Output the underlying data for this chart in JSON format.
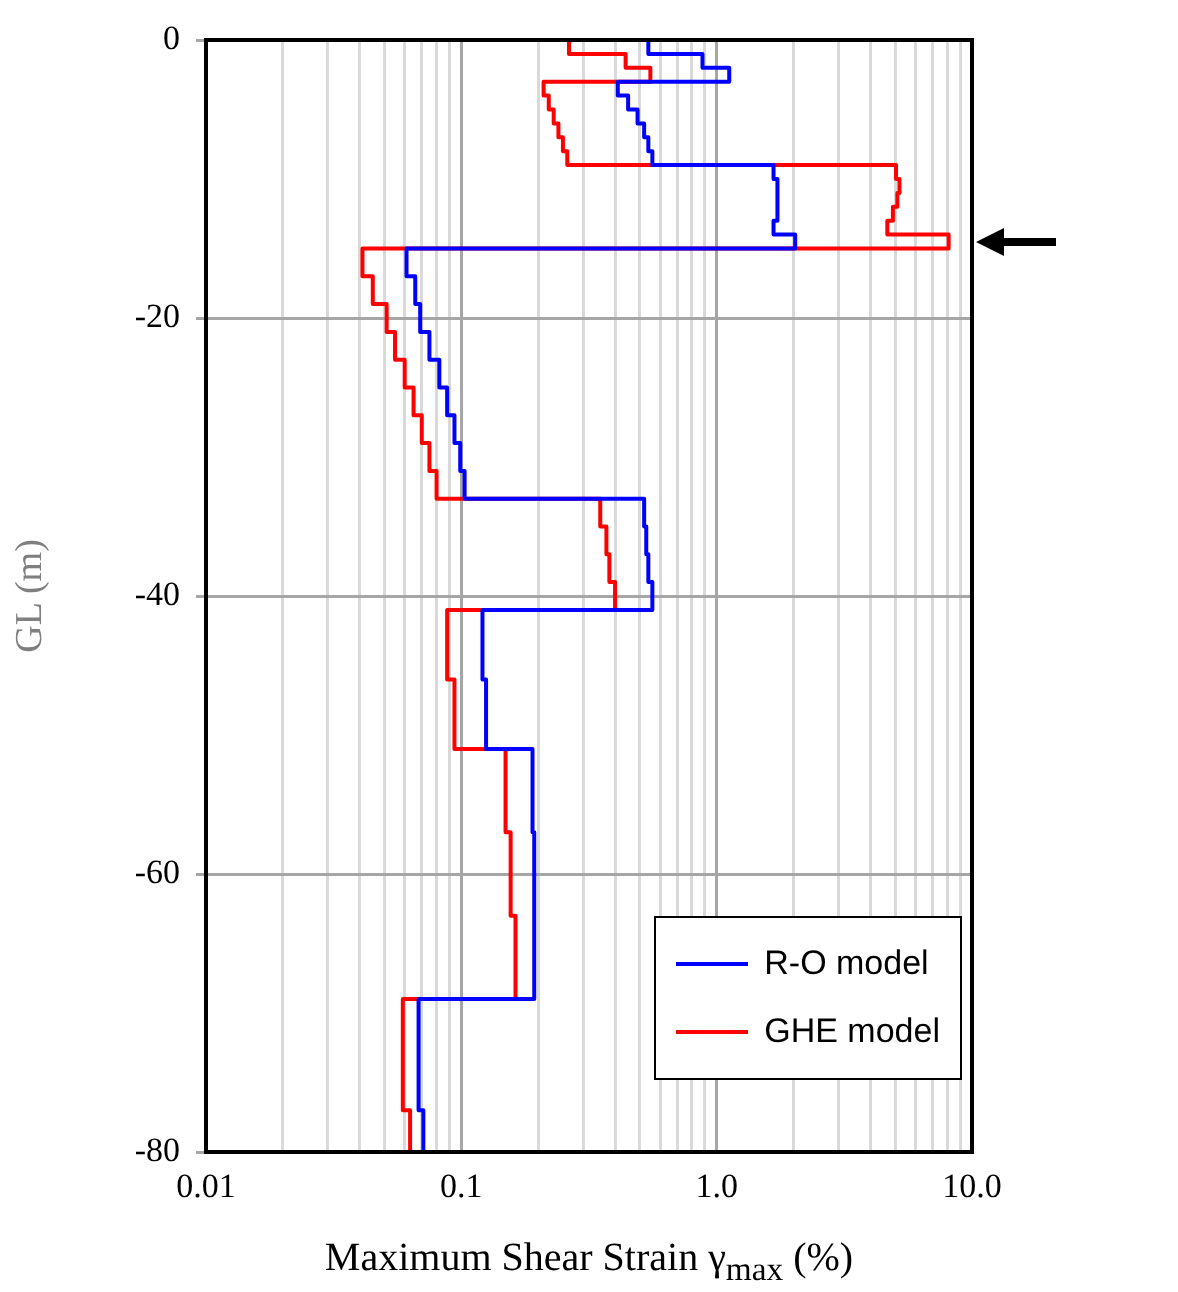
{
  "chart_data": {
    "type": "line",
    "xlabel": "Maximum Shear Strain γ$_{max}$  (%)",
    "ylabel": "GL (m)",
    "log": "x",
    "grid": true,
    "legend": "bottom right",
    "marker": "none",
    "xlim": [
      0.01,
      10
    ],
    "ylim": [
      -80,
      0
    ],
    "xticks": [
      0.01,
      {
        "value": 0.02,
        "label": null
      },
      {
        "value": 0.03,
        "label": null
      },
      {
        "value": 0.04,
        "label": null
      },
      {
        "value": 0.05,
        "label": null
      },
      {
        "value": 0.06,
        "label": null
      },
      {
        "value": 0.07,
        "label": null
      },
      {
        "value": 0.08,
        "label": null
      },
      {
        "value": 0.09,
        "label": null
      },
      0.1,
      {
        "value": 0.2,
        "label": null
      },
      {
        "value": 0.3,
        "label": null
      },
      {
        "value": 0.4,
        "label": null
      },
      {
        "value": 0.5,
        "label": null
      },
      {
        "value": 0.6,
        "label": null
      },
      {
        "value": 0.7,
        "label": null
      },
      {
        "value": 0.8,
        "label": null
      },
      {
        "value": 0.9,
        "label": null
      },
      {
        "value": 1,
        "label": "1.0"
      },
      {
        "value": 2,
        "label": null
      },
      {
        "value": 3,
        "label": null
      },
      {
        "value": 4,
        "label": null
      },
      {
        "value": 5,
        "label": null
      },
      {
        "value": 6,
        "label": null
      },
      {
        "value": 7,
        "label": null
      },
      {
        "value": 8,
        "label": null
      },
      {
        "value": 9,
        "label": null
      },
      {
        "value": 10,
        "label": "10.0"
      }
    ],
    "yticks": [
      0,
      -20,
      -40,
      -60,
      -80
    ],
    "series": [
      {
        "name": "R-O model",
        "color": "#0000ff",
        "x": [
          0.54,
          0.54,
          0.88,
          0.88,
          1.12,
          1.12,
          0.41,
          0.41,
          0.45,
          0.45,
          0.49,
          0.49,
          0.52,
          0.52,
          0.54,
          0.54,
          0.56,
          0.56,
          1.67,
          1.67,
          1.73,
          1.73,
          1.67,
          1.67,
          2.03,
          2.03,
          0.061,
          0.061,
          0.066,
          0.066,
          0.069,
          0.069,
          0.075,
          0.075,
          0.082,
          0.082,
          0.088,
          0.088,
          0.094,
          0.094,
          0.099,
          0.099,
          0.103,
          0.103,
          0.52,
          0.52,
          0.53,
          0.53,
          0.54,
          0.54,
          0.56,
          0.56,
          0.121,
          0.121,
          0.125,
          0.125,
          0.19,
          0.19,
          0.193,
          0.193,
          0.068,
          0.068,
          0.071,
          0.071
        ],
        "values": [
          0,
          -1,
          -1,
          -2,
          -2,
          -3,
          -3,
          -4,
          -4,
          -5,
          -5,
          -6,
          -6,
          -7,
          -7,
          -8,
          -8,
          -9,
          -9,
          -10,
          -10,
          -13,
          -13,
          -14,
          -14,
          -15,
          -15,
          -17,
          -17,
          -19,
          -19,
          -21,
          -21,
          -23,
          -23,
          -25,
          -25,
          -27,
          -27,
          -29,
          -29,
          -31,
          -31,
          -33,
          -33,
          -35,
          -35,
          -37,
          -37,
          -39,
          -39,
          -41,
          -41,
          -46,
          -46,
          -51,
          -51,
          -57,
          -57,
          -69,
          -69,
          -77,
          -77,
          -80
        ]
      },
      {
        "name": "GHE model",
        "color": "#ff0000",
        "x": [
          0.264,
          0.264,
          0.44,
          0.44,
          0.55,
          0.55,
          0.21,
          0.21,
          0.22,
          0.22,
          0.23,
          0.23,
          0.24,
          0.24,
          0.25,
          0.25,
          0.26,
          0.26,
          5.04,
          5.04,
          5.2,
          5.2,
          5.1,
          5.1,
          4.9,
          4.9,
          4.66,
          4.66,
          8.1,
          8.1,
          0.041,
          0.041,
          0.045,
          0.045,
          0.051,
          0.051,
          0.055,
          0.055,
          0.06,
          0.06,
          0.065,
          0.065,
          0.07,
          0.07,
          0.075,
          0.075,
          0.08,
          0.08,
          0.35,
          0.35,
          0.37,
          0.37,
          0.38,
          0.38,
          0.4,
          0.4,
          0.088,
          0.088,
          0.094,
          0.094,
          0.149,
          0.149,
          0.156,
          0.156,
          0.163,
          0.163,
          0.059,
          0.059,
          0.063,
          0.063
        ],
        "values": [
          0,
          -1,
          -1,
          -2,
          -2,
          -3,
          -3,
          -4,
          -4,
          -5,
          -5,
          -6,
          -6,
          -7,
          -7,
          -8,
          -8,
          -9,
          -9,
          -10,
          -10,
          -11,
          -11,
          -12,
          -12,
          -13,
          -13,
          -14,
          -14,
          -15,
          -15,
          -17,
          -17,
          -19,
          -19,
          -21,
          -21,
          -23,
          -23,
          -25,
          -25,
          -27,
          -27,
          -29,
          -29,
          -31,
          -31,
          -33,
          -33,
          -35,
          -35,
          -37,
          -37,
          -39,
          -39,
          -41,
          -41,
          -46,
          -46,
          -51,
          -51,
          -57,
          -57,
          -63,
          -63,
          -69,
          -69,
          -77,
          -77,
          -80
        ]
      }
    ]
  }
}
